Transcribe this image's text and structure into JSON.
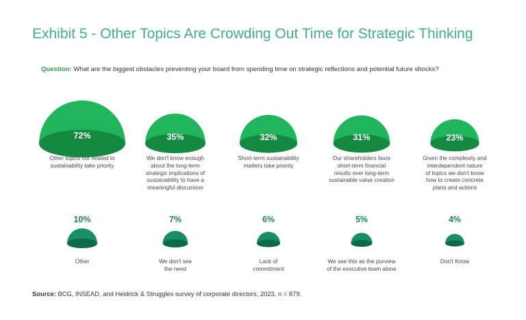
{
  "title": "Exhibit 5 - Other Topics Are Crowding Out Time for Strategic Thinking",
  "question": {
    "label": "Question:",
    "text": "What are the biggest obstacles preventing your board from spending time on strategic reflections and potential future shocks?"
  },
  "source": {
    "label": "Source:",
    "text": "BCG, INSEAD, and Heidrick & Struggles survey of corporate directors, 2023, n = 879."
  },
  "colors": {
    "top_dome": "#1fb55a",
    "top_base": "#138a40",
    "bottom_dome": "#178f62",
    "bottom_base": "#0d6b45",
    "value_light": "#ffffff",
    "value_dark": "#1b8a4f"
  },
  "chart_data": {
    "type": "bubble",
    "unit": "%",
    "categories": [
      "Other topics not related to\nsustainability take priority",
      "We don't know enough\nabout the long-term\nstrategic implications of\nsustainability to have a\nmeaningful discussion",
      "Short-term sustainability\nmatters take priority",
      "Our shareholders favor\nshort-term financial\nresults over long-term\nsustainable value creation",
      "Given the complexity and\ninterdependent nature\nof topics we don't know\nhow to create concrete\nplans and actions",
      "Other",
      "We don't see\nthe need",
      "Lack of\ncommitment",
      "We see this as the purview\nof the executive team alone",
      "Don't Know"
    ],
    "values": [
      72,
      35,
      32,
      31,
      23,
      10,
      7,
      6,
      5,
      4
    ],
    "labels": [
      "72%",
      "35%",
      "32%",
      "31%",
      "23%",
      "10%",
      "7%",
      "6%",
      "5%",
      "4%"
    ]
  }
}
